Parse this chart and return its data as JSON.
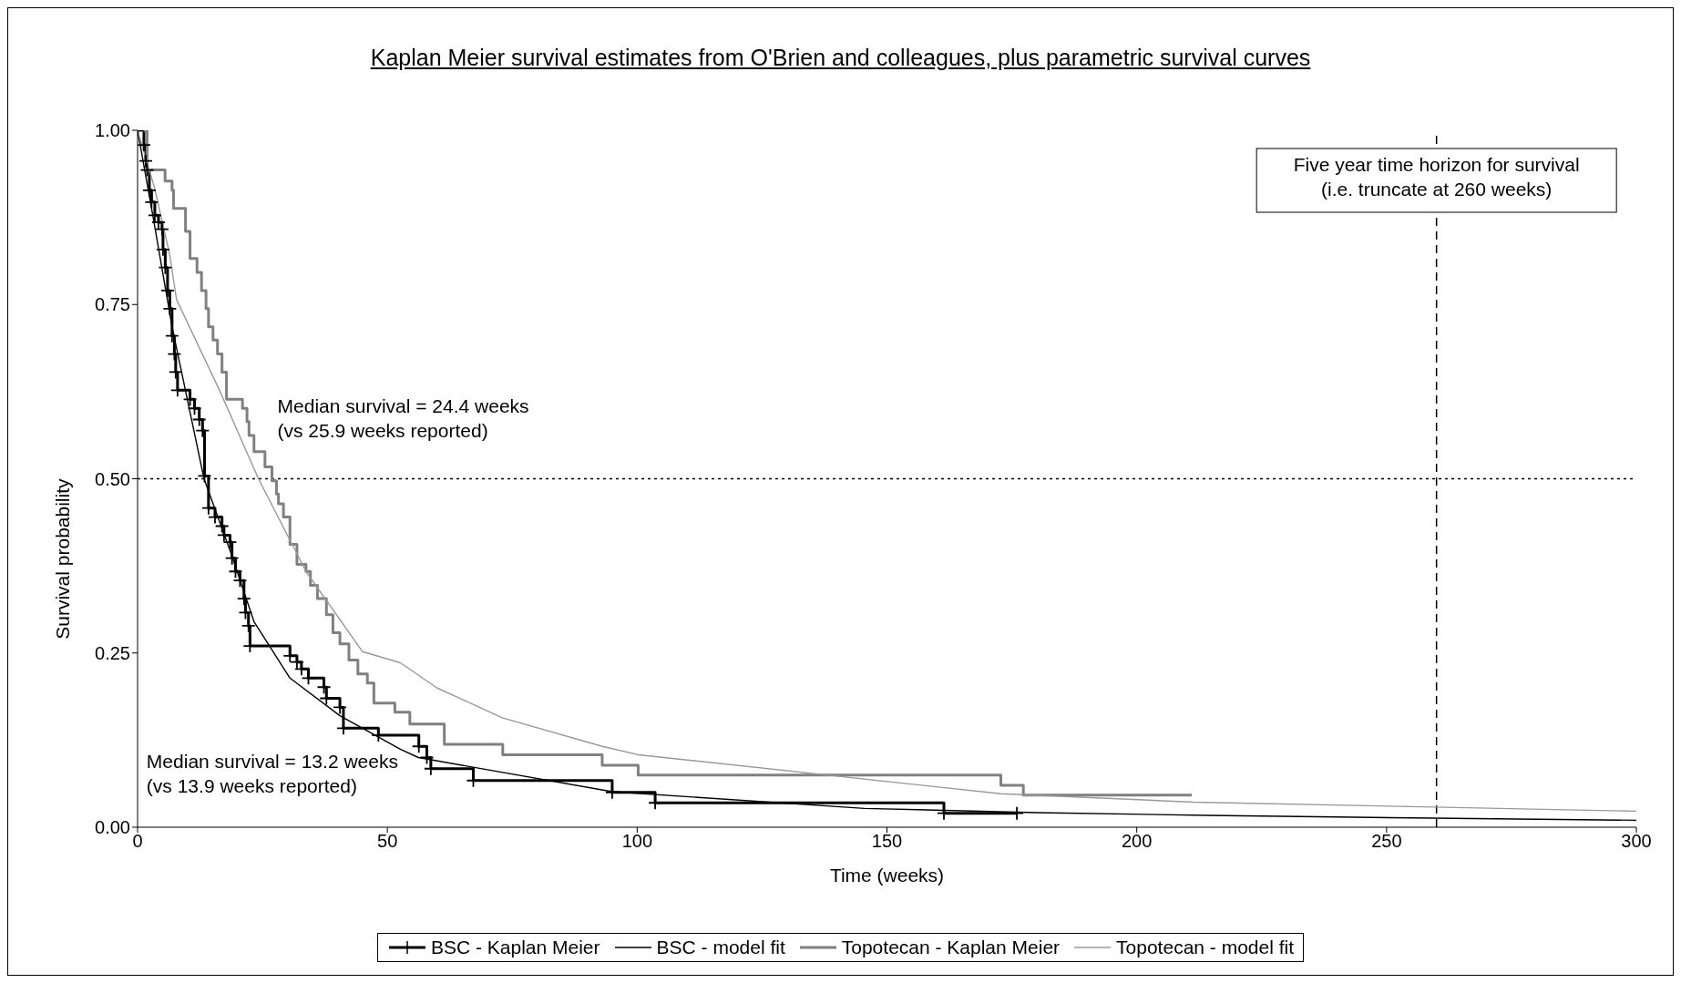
{
  "chart_data": {
    "type": "line",
    "title": "Kaplan Meier survival estimates from O'Brien and colleagues, plus parametric survival curves",
    "xlabel": "Time (weeks)",
    "ylabel": "Survival probability",
    "xlim": [
      0,
      300
    ],
    "xticks": [
      0,
      50,
      100,
      150,
      200,
      250,
      300
    ],
    "ylim": [
      0,
      1
    ],
    "yticks": [
      {
        "value": 0,
        "label": "0.00"
      },
      {
        "value": 0.25,
        "label": "0.25"
      },
      {
        "value": 0.5,
        "label": "0.50"
      },
      {
        "value": 0.75,
        "label": "0.75"
      },
      {
        "value": 1,
        "label": "1.00"
      }
    ],
    "legend": "bottom",
    "series": [
      {
        "name": "BSC - Kaplan Meier",
        "type": "step",
        "color": "#000000",
        "marker": "cross",
        "x": [
          0,
          1.27,
          1.63,
          1.9,
          2.36,
          2.8,
          3.45,
          4.18,
          4.9,
          5.09,
          5.54,
          6.0,
          6.45,
          6.9,
          7.36,
          7.63,
          8.0,
          10.5,
          11.4,
          12.35,
          13.0,
          13.4,
          14.2,
          15.5,
          16.9,
          17.3,
          18.5,
          18.9,
          19.6,
          20.5,
          21.3,
          21.6,
          22.2,
          22.5,
          30.5,
          31.9,
          32.8,
          34.2,
          37.3,
          37.8,
          40.5,
          41.2,
          48.2,
          56.3,
          57.9,
          58.7,
          67.2,
          95,
          103.6,
          161.4,
          176
        ],
        "values": [
          1.0,
          0.979,
          0.956,
          0.943,
          0.914,
          0.897,
          0.878,
          0.868,
          0.858,
          0.829,
          0.803,
          0.77,
          0.744,
          0.705,
          0.679,
          0.653,
          0.627,
          0.614,
          0.601,
          0.585,
          0.569,
          0.504,
          0.458,
          0.445,
          0.432,
          0.419,
          0.409,
          0.386,
          0.367,
          0.354,
          0.328,
          0.308,
          0.289,
          0.26,
          0.246,
          0.237,
          0.227,
          0.214,
          0.201,
          0.185,
          0.172,
          0.142,
          0.132,
          0.116,
          0.1,
          0.084,
          0.067,
          0.05,
          0.035,
          0.02,
          0.02
        ]
      },
      {
        "name": "BSC - model fit",
        "type": "line",
        "color": "#000000",
        "marker": "none",
        "x": [
          0,
          3,
          6.9,
          13.3,
          18.7,
          23.3,
          30.5,
          40.5,
          52.6,
          56.2,
          95,
          145.5,
          180,
          214,
          259,
          300
        ],
        "values": [
          1.0,
          0.88,
          0.718,
          0.5,
          0.393,
          0.295,
          0.214,
          0.16,
          0.112,
          0.1,
          0.051,
          0.027,
          0.021,
          0.017,
          0.013,
          0.01
        ]
      },
      {
        "name": "Topotecan - Kaplan Meier",
        "type": "step",
        "color": "#808080",
        "marker": "none",
        "x": [
          0,
          1.9,
          5.5,
          6.9,
          7.2,
          9.6,
          10.5,
          11.9,
          12.8,
          13.7,
          14.2,
          15.1,
          16.0,
          16.9,
          17.8,
          21.0,
          21.9,
          22.3,
          23.3,
          25.5,
          26.9,
          27.8,
          28.2,
          29.2,
          30.5,
          31.9,
          33.7,
          34.6,
          36.0,
          37.8,
          39.1,
          40.5,
          42.3,
          44.1,
          46.0,
          47.3,
          51.5,
          54.5,
          61.4,
          73.1,
          93,
          100.2,
          172.8,
          177.3,
          211
        ],
        "values": [
          1.0,
          0.943,
          0.927,
          0.914,
          0.888,
          0.855,
          0.816,
          0.796,
          0.77,
          0.744,
          0.718,
          0.699,
          0.679,
          0.653,
          0.614,
          0.601,
          0.582,
          0.562,
          0.539,
          0.517,
          0.497,
          0.478,
          0.464,
          0.445,
          0.406,
          0.377,
          0.367,
          0.347,
          0.328,
          0.305,
          0.279,
          0.263,
          0.24,
          0.22,
          0.207,
          0.178,
          0.165,
          0.148,
          0.119,
          0.104,
          0.089,
          0.075,
          0.06,
          0.046,
          0.046
        ]
      },
      {
        "name": "Topotecan - model fit",
        "type": "line",
        "color": "#999999",
        "marker": "none",
        "x": [
          0,
          3.3,
          6.4,
          7.8,
          16.4,
          24.2,
          33.7,
          45,
          52.6,
          59.9,
          73,
          93,
          100.2,
          172.8,
          211.4,
          300
        ],
        "values": [
          1.0,
          0.92,
          0.823,
          0.757,
          0.627,
          0.5,
          0.367,
          0.252,
          0.236,
          0.2,
          0.157,
          0.116,
          0.104,
          0.048,
          0.036,
          0.023
        ]
      }
    ],
    "ref_lines": [
      {
        "axis": "y",
        "value": 0.5,
        "line_style": "dotted",
        "color": "#000000"
      },
      {
        "axis": "x",
        "value": 260,
        "line_style": "dashed",
        "color": "#000000",
        "label": "Five year time horizon for survival\n(i.e. truncate at 260 weeks)"
      }
    ],
    "annotations": [
      "Median survival = 24.4 weeks\n(vs 25.9 weeks reported)",
      "Median survival = 13.2 weeks\n(vs 13.9 weeks reported)"
    ]
  }
}
